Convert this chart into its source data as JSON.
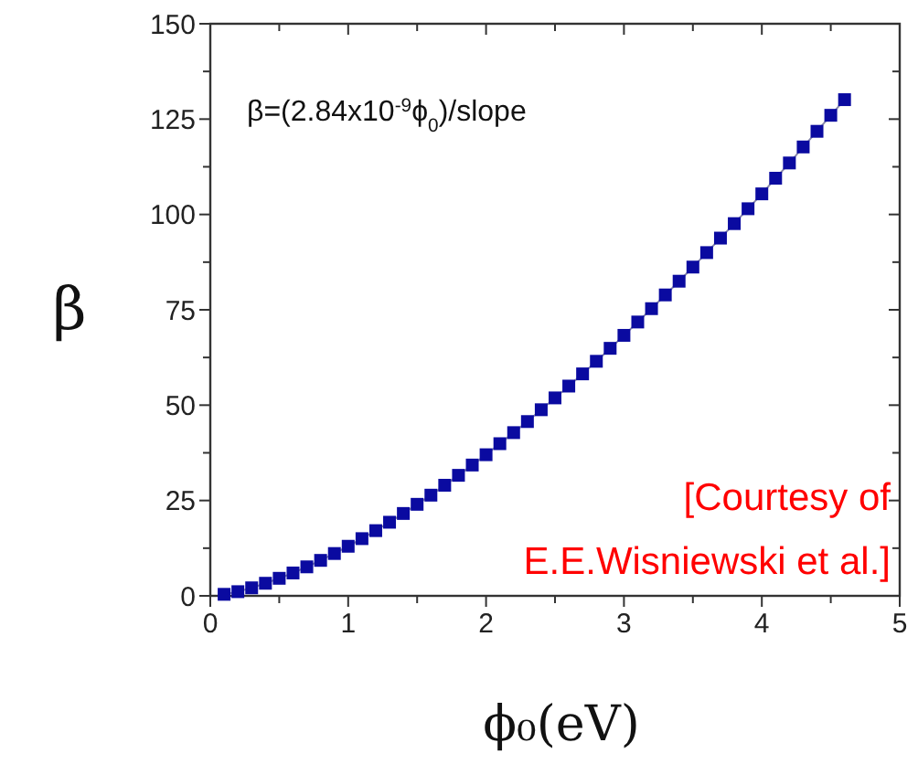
{
  "chart_data": {
    "type": "line",
    "xlabel": "ϕ₀(eV)",
    "ylabel": "β",
    "annotations": [
      "β=(2.84x10$^{-9}$ϕ$_{0}$)/slope",
      "[Courtesy of\nE.E.Wisniewski et al.]"
    ],
    "x": [
      0.1,
      0.2,
      0.3,
      0.4,
      0.5,
      0.6,
      0.7,
      0.8,
      0.9,
      1.0,
      1.1,
      1.2,
      1.3,
      1.4,
      1.5,
      1.6,
      1.7,
      1.8,
      1.9,
      2.0,
      2.1,
      2.2,
      2.3,
      2.4,
      2.5,
      2.6,
      2.7,
      2.8,
      2.9,
      3.0,
      3.1,
      3.2,
      3.3,
      3.4,
      3.5,
      3.6,
      3.7,
      3.8,
      3.9,
      4.0,
      4.1,
      4.2,
      4.3,
      4.4,
      4.5,
      4.6
    ],
    "series": [
      {
        "color": "#0a0aa0",
        "values": [
          0.4,
          1.1,
          2.1,
          3.3,
          4.6,
          6.0,
          7.6,
          9.3,
          11.1,
          13,
          15,
          17.1,
          19.3,
          21.6,
          24,
          26.4,
          29,
          31.6,
          34.3,
          37,
          39.9,
          42.8,
          45.7,
          48.8,
          51.9,
          55,
          58.2,
          61.5,
          64.9,
          68.3,
          71.8,
          75.3,
          78.9,
          82.5,
          86.2,
          90,
          93.8,
          97.6,
          101.5,
          105.4,
          109.5,
          113.5,
          117.7,
          121.8,
          126,
          130.1
        ]
      }
    ],
    "marker": "square",
    "line_style": "solid",
    "grid": false,
    "xlim": [
      0,
      5
    ],
    "xticks": [
      0,
      {
        "value": 0.5,
        "label": null
      },
      1,
      {
        "value": 1.5,
        "label": null
      },
      2,
      {
        "value": 2.5,
        "label": null
      },
      3,
      {
        "value": 3.5,
        "label": null
      },
      4,
      {
        "value": 4.5,
        "label": null
      },
      5
    ],
    "ylim": [
      0,
      150
    ],
    "yticks": [
      0,
      {
        "value": 12.5,
        "label": null
      },
      25,
      {
        "value": 37.5,
        "label": null
      },
      50,
      {
        "value": 62.5,
        "label": null
      },
      75,
      {
        "value": 87.5,
        "label": null
      },
      100,
      {
        "value": 112.5,
        "label": null
      },
      125,
      {
        "value": 137.5,
        "label": null
      },
      150
    ]
  }
}
